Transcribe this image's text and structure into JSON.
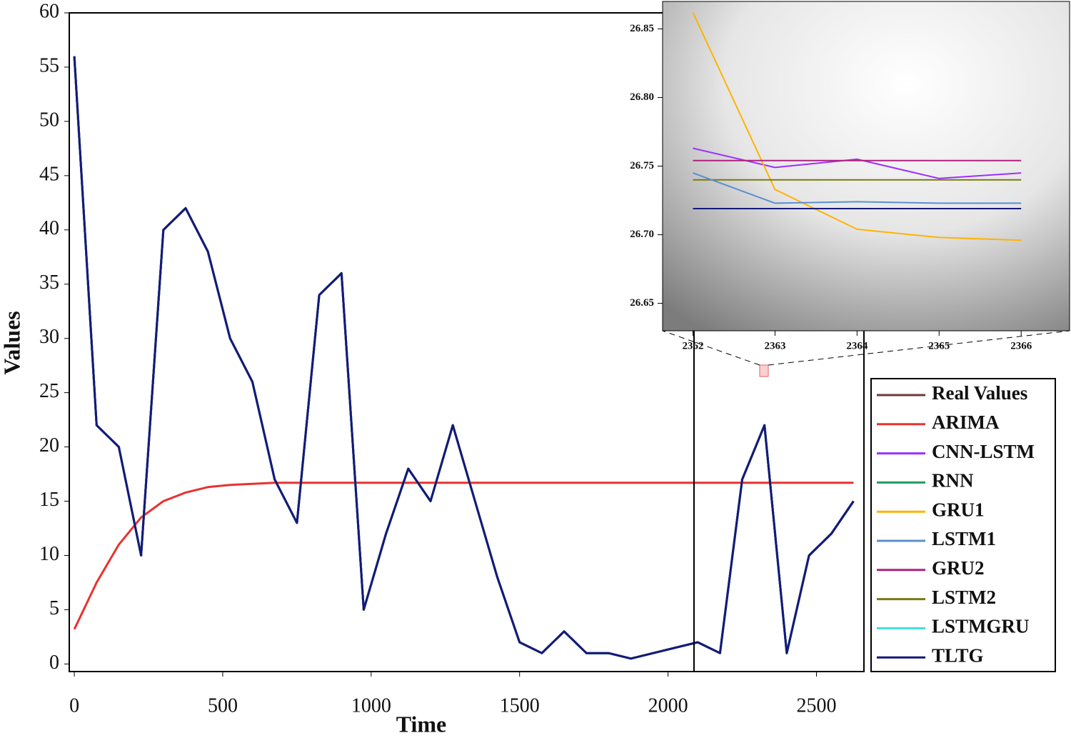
{
  "chart_data": [
    {
      "type": "line",
      "x_label": "Time",
      "y_label": "Values",
      "x": [
        0,
        75,
        150,
        225,
        300,
        375,
        450,
        525,
        600,
        675,
        750,
        825,
        900,
        975,
        1050,
        1125,
        1200,
        1275,
        1350,
        1425,
        1500,
        1575,
        1650,
        1725,
        1800,
        1875,
        1950,
        2025,
        2100,
        2175,
        2250,
        2325,
        2400,
        2475,
        2550,
        2625
      ],
      "xlim": [
        -17,
        2660
      ],
      "xticks": [
        0,
        500,
        1000,
        1500,
        2000,
        2500
      ],
      "ylim": [
        -0.7,
        60
      ],
      "yticks": [
        0,
        5,
        10,
        15,
        20,
        25,
        30,
        35,
        40,
        45,
        50,
        55,
        60
      ],
      "legend": "right",
      "series": [
        {
          "name": "Real Values",
          "color": "#6b3a3a",
          "values": [
            56,
            22,
            20,
            10,
            40,
            42,
            38,
            30,
            26,
            17,
            13,
            34,
            36,
            5,
            12,
            18,
            15,
            22,
            15,
            8,
            2,
            1,
            3,
            1,
            1,
            0.5,
            1,
            1.5,
            2,
            1,
            17,
            22,
            1,
            10,
            12,
            15
          ]
        },
        {
          "name": "ARIMA",
          "color": "#e8322f",
          "values": [
            3.2,
            7.5,
            11,
            13.5,
            15,
            15.8,
            16.3,
            16.5,
            16.6,
            16.7,
            16.7,
            16.7,
            16.7,
            16.7,
            16.7,
            16.7,
            16.7,
            16.7,
            16.7,
            16.7,
            16.7,
            16.7,
            16.7,
            16.7,
            16.7,
            16.7,
            16.7,
            16.7,
            16.7,
            16.7,
            16.7,
            16.7,
            16.7,
            16.7,
            16.7,
            16.7
          ]
        },
        {
          "name": "CNN-LSTM",
          "color": "#9b30ff",
          "values": [
            56,
            22,
            20,
            10,
            40,
            42,
            38,
            30,
            26,
            17,
            13,
            34,
            36,
            5,
            12,
            18,
            15,
            22,
            15,
            8,
            2,
            1,
            3,
            1,
            1,
            0.5,
            1,
            1.5,
            2,
            1,
            17,
            22,
            1,
            10,
            12,
            15
          ]
        },
        {
          "name": "RNN",
          "color": "#1e9e5e",
          "values": [
            56,
            22,
            20,
            10,
            40,
            42,
            38,
            30,
            26,
            17,
            13,
            34,
            36,
            5,
            12,
            18,
            15,
            22,
            15,
            8,
            2,
            1,
            3,
            1,
            1,
            0.5,
            1,
            1.5,
            2,
            1,
            17,
            22,
            1,
            10,
            12,
            15
          ]
        },
        {
          "name": "GRU1",
          "color": "#ffb300",
          "values": [
            56,
            22,
            20,
            10,
            40,
            42,
            38,
            30,
            26,
            17,
            13,
            34,
            36,
            5,
            12,
            18,
            15,
            22,
            15,
            8,
            2,
            1,
            3,
            1,
            1,
            0.5,
            1,
            1.5,
            2,
            1,
            17,
            22,
            1,
            10,
            12,
            15
          ]
        },
        {
          "name": "LSTM1",
          "color": "#5b8fd1",
          "values": [
            56,
            22,
            20,
            10,
            40,
            42,
            38,
            30,
            26,
            17,
            13,
            34,
            36,
            5,
            12,
            18,
            15,
            22,
            15,
            8,
            2,
            1,
            3,
            1,
            1,
            0.5,
            1,
            1.5,
            2,
            1,
            17,
            22,
            1,
            10,
            12,
            15
          ]
        },
        {
          "name": "GRU2",
          "color": "#b0207e",
          "values": [
            56,
            22,
            20,
            10,
            40,
            42,
            38,
            30,
            26,
            17,
            13,
            34,
            36,
            5,
            12,
            18,
            15,
            22,
            15,
            8,
            2,
            1,
            3,
            1,
            1,
            0.5,
            1,
            1.5,
            2,
            1,
            17,
            22,
            1,
            10,
            12,
            15
          ]
        },
        {
          "name": "LSTM2",
          "color": "#7a7a10",
          "values": [
            56,
            22,
            20,
            10,
            40,
            42,
            38,
            30,
            26,
            17,
            13,
            34,
            36,
            5,
            12,
            18,
            15,
            22,
            15,
            8,
            2,
            1,
            3,
            1,
            1,
            0.5,
            1,
            1.5,
            2,
            1,
            17,
            22,
            1,
            10,
            12,
            15
          ]
        },
        {
          "name": "LSTMGRU",
          "color": "#3ee0d8",
          "values": [
            56,
            22,
            20,
            10,
            40,
            42,
            38,
            30,
            26,
            17,
            13,
            34,
            36,
            5,
            12,
            18,
            15,
            22,
            15,
            8,
            2,
            1,
            3,
            1,
            1,
            0.5,
            1,
            1.5,
            2,
            1,
            17,
            22,
            1,
            10,
            12,
            15
          ]
        },
        {
          "name": "TLTG",
          "color": "#14197a",
          "values": [
            56,
            22,
            20,
            10,
            40,
            42,
            38,
            30,
            26,
            17,
            13,
            34,
            36,
            5,
            12,
            18,
            15,
            22,
            15,
            8,
            2,
            1,
            3,
            1,
            1,
            0.5,
            1,
            1.5,
            2,
            1,
            17,
            22,
            1,
            10,
            12,
            15
          ]
        }
      ]
    },
    {
      "type": "line",
      "x": [
        2362,
        2363,
        2364,
        2365,
        2366
      ],
      "xlim": [
        2361.63,
        2366.59
      ],
      "xticks": [
        2362,
        2363,
        2364,
        2365,
        2366
      ],
      "ylim": [
        26.63,
        26.87
      ],
      "yticks": [
        26.65,
        {
          "value": 26.7,
          "label": "26.70"
        },
        26.75,
        {
          "value": 26.8,
          "label": "26.80"
        },
        26.85
      ],
      "series": [
        {
          "name": "CNN-LSTM",
          "color": "#9b30ff",
          "values": [
            26.763,
            26.749,
            26.755,
            26.741,
            26.745
          ]
        },
        {
          "name": "GRU1",
          "color": "#ffb300",
          "values": [
            26.862,
            26.733,
            26.704,
            26.698,
            26.696
          ]
        },
        {
          "name": "GRU2",
          "color": "#b0207e",
          "values": [
            26.754,
            26.754,
            26.754,
            26.754,
            26.754
          ]
        },
        {
          "name": "LSTM2",
          "color": "#7a7a10",
          "values": [
            26.74,
            26.74,
            26.74,
            26.74,
            26.74
          ]
        },
        {
          "name": "LSTM1",
          "color": "#5b8fd1",
          "values": [
            26.745,
            26.723,
            26.724,
            26.723,
            26.723
          ]
        },
        {
          "name": "TLTG",
          "color": "#14197a",
          "values": [
            26.719,
            26.719,
            26.719,
            26.719,
            26.719
          ]
        }
      ]
    }
  ]
}
